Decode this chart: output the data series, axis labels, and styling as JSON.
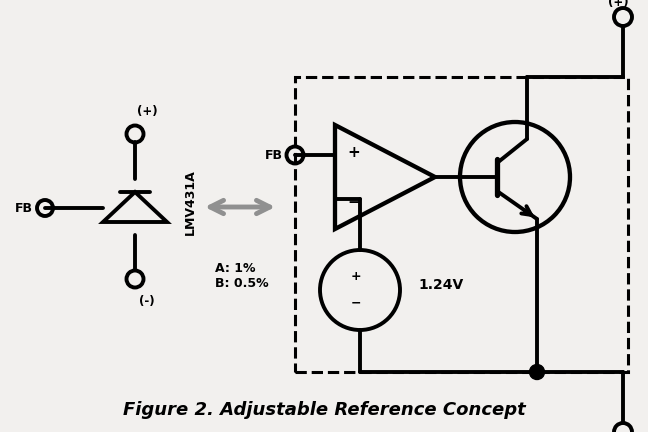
{
  "title": "Figure 2. Adjustable Reference Concept",
  "title_fontsize": 13,
  "bg_color": "#f2f0ee",
  "line_color": "#000000",
  "arrow_color": "#909090",
  "lmv_label": "LMV431A",
  "voltage_label": "1.24V",
  "tolerance_label": "A: 1%\nB: 0.5%",
  "linewidth": 2.8
}
